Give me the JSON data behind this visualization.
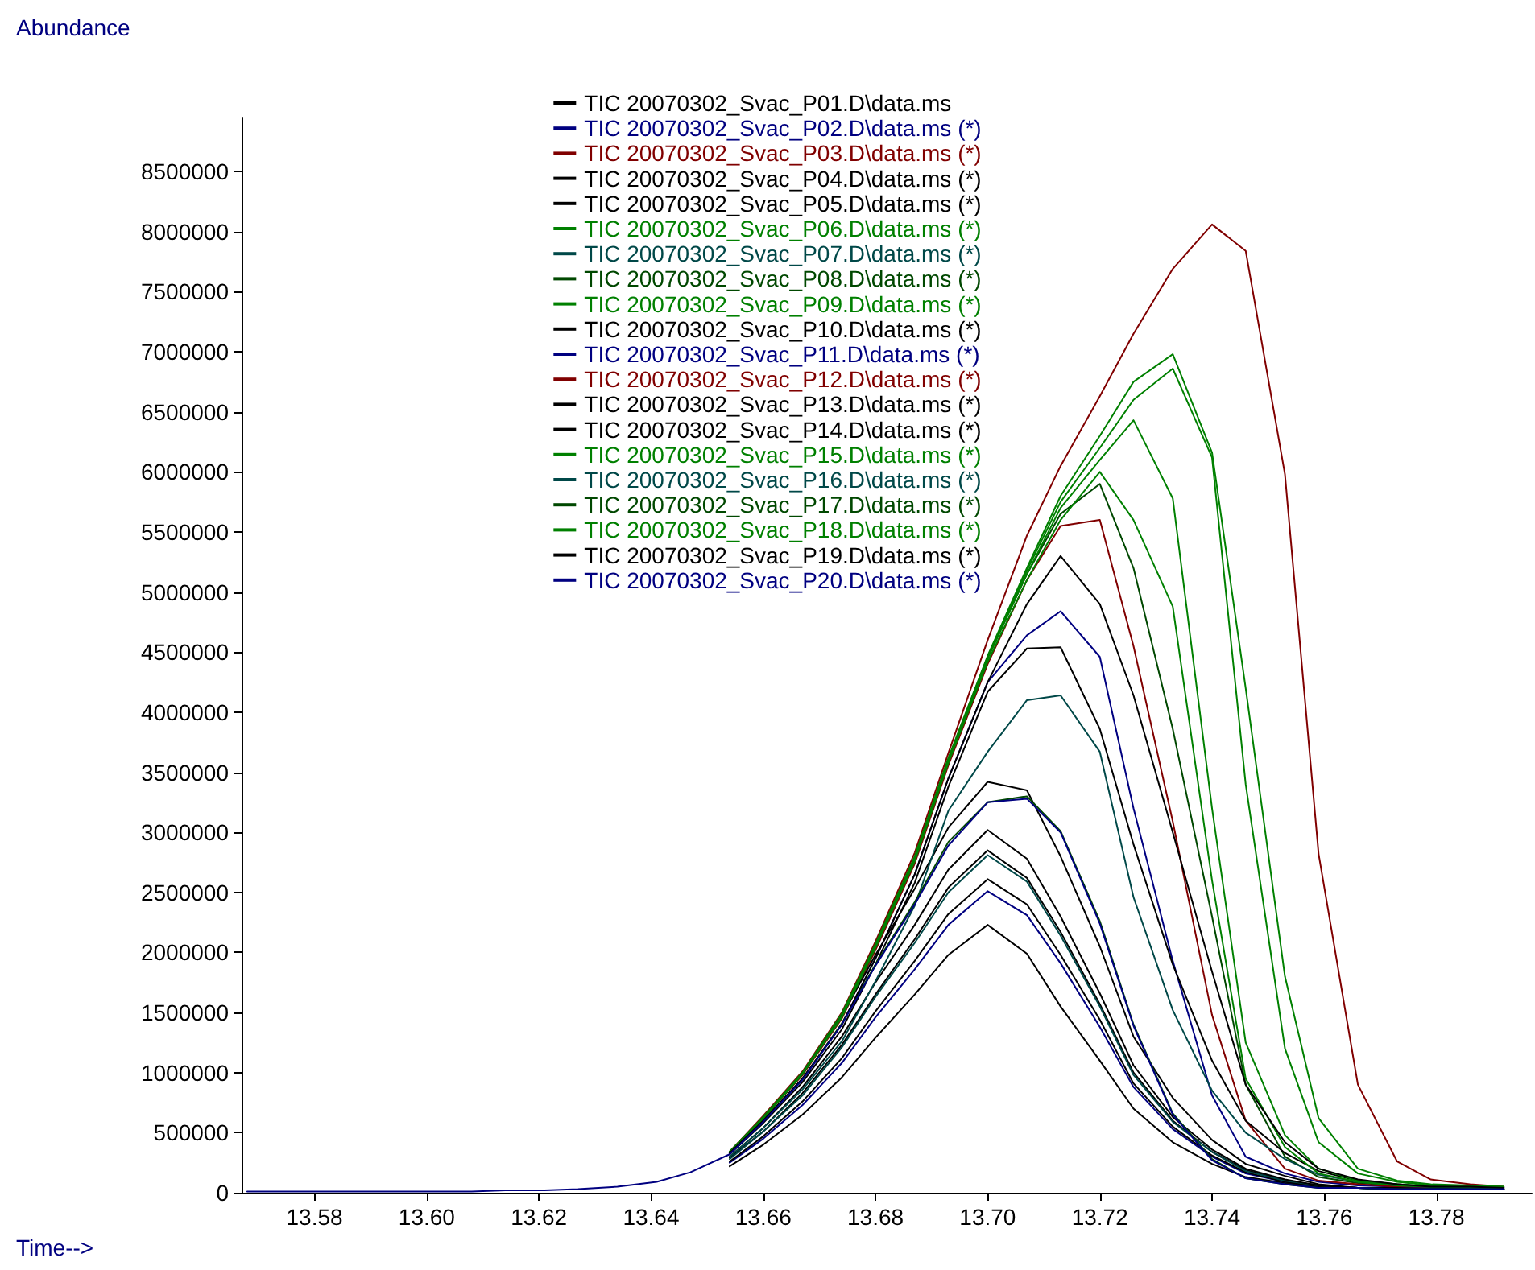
{
  "chart_data": {
    "type": "line",
    "xlabel": "Time-->",
    "ylabel": "Abundance",
    "legend": "top",
    "xlim": [
      13.567,
      13.797
    ],
    "ylim": [
      0,
      8950000
    ],
    "xticks": [
      {
        "value": 13.58,
        "label": "13.58"
      },
      {
        "value": 13.6,
        "label": "13.60"
      },
      {
        "value": 13.62,
        "label": "13.62"
      },
      {
        "value": 13.64,
        "label": "13.64"
      },
      {
        "value": 13.66,
        "label": "13.66"
      },
      {
        "value": 13.68,
        "label": "13.68"
      },
      {
        "value": 13.7,
        "label": "13.70"
      },
      {
        "value": 13.72,
        "label": "13.72"
      },
      {
        "value": 13.74,
        "label": "13.74"
      },
      {
        "value": 13.76,
        "label": "13.76"
      },
      {
        "value": 13.78,
        "label": "13.78"
      }
    ],
    "yticks": [
      0,
      500000,
      1000000,
      1500000,
      2000000,
      2500000,
      3000000,
      3500000,
      4000000,
      4500000,
      5000000,
      5500000,
      6000000,
      6500000,
      7000000,
      7500000,
      8000000,
      8500000
    ],
    "x": [
      13.568,
      13.575,
      13.581,
      13.588,
      13.594,
      13.601,
      13.608,
      13.614,
      13.621,
      13.627,
      13.634,
      13.641,
      13.647,
      13.654,
      13.66,
      13.667,
      13.674,
      13.68,
      13.687,
      13.693,
      13.7,
      13.707,
      13.713,
      13.72,
      13.726,
      13.733,
      13.74,
      13.746,
      13.753,
      13.759,
      13.766,
      13.773,
      13.779,
      13.786,
      13.792
    ],
    "series": [
      {
        "name": "TIC 20070302_Svac_P01.D\\data.ms",
        "color": "#000000",
        "values": [
          null,
          null,
          null,
          null,
          null,
          null,
          null,
          null,
          null,
          null,
          null,
          null,
          null,
          220000,
          400000,
          650000,
          960000,
          1290000,
          1650000,
          1980000,
          2230000,
          1990000,
          1550000,
          1100000,
          700000,
          420000,
          240000,
          130000,
          80000,
          50000,
          40000,
          30000,
          30000,
          30000,
          30000
        ]
      },
      {
        "name": "TIC 20070302_Svac_P02.D\\data.ms (*)",
        "color": "#000080",
        "values": [
          null,
          null,
          null,
          null,
          null,
          null,
          null,
          null,
          null,
          null,
          null,
          null,
          null,
          250000,
          450000,
          730000,
          1080000,
          1460000,
          1860000,
          2230000,
          2510000,
          2310000,
          1910000,
          1380000,
          880000,
          530000,
          300000,
          160000,
          90000,
          50000,
          40000,
          30000,
          30000,
          30000,
          30000
        ]
      },
      {
        "name": "TIC 20070302_Svac_P03.D\\data.ms (*)",
        "color": "#800000",
        "values": [
          null,
          null,
          null,
          null,
          null,
          null,
          null,
          null,
          null,
          null,
          null,
          null,
          null,
          340000,
          640000,
          1010000,
          1500000,
          2090000,
          2830000,
          3660000,
          4600000,
          5470000,
          6050000,
          6630000,
          7150000,
          7690000,
          8060000,
          7840000,
          5980000,
          2820000,
          900000,
          260000,
          110000,
          70000,
          50000
        ]
      },
      {
        "name": "TIC 20070302_Svac_P04.D\\data.ms (*)",
        "color": "#000000",
        "values": [
          null,
          null,
          null,
          null,
          null,
          null,
          null,
          null,
          null,
          null,
          null,
          null,
          null,
          260000,
          470000,
          760000,
          1120000,
          1510000,
          1930000,
          2320000,
          2610000,
          2400000,
          1980000,
          1440000,
          910000,
          550000,
          310000,
          170000,
          90000,
          50000,
          40000,
          30000,
          30000,
          30000,
          30000
        ]
      },
      {
        "name": "TIC 20070302_Svac_P05.D\\data.ms (*)",
        "color": "#000000",
        "values": [
          null,
          null,
          null,
          null,
          null,
          null,
          null,
          null,
          null,
          null,
          null,
          null,
          null,
          290000,
          510000,
          830000,
          1230000,
          1650000,
          2110000,
          2540000,
          2850000,
          2620000,
          2170000,
          1570000,
          1000000,
          600000,
          340000,
          190000,
          100000,
          60000,
          40000,
          30000,
          30000,
          30000,
          30000
        ]
      },
      {
        "name": "TIC 20070302_Svac_P06.D\\data.ms (*)",
        "color": "#008000",
        "values": [
          null,
          null,
          null,
          null,
          null,
          null,
          null,
          null,
          null,
          null,
          null,
          null,
          null,
          340000,
          630000,
          1000000,
          1490000,
          2070000,
          2800000,
          3620000,
          4470000,
          5200000,
          5800000,
          6300000,
          6750000,
          6980000,
          6160000,
          4200000,
          1800000,
          620000,
          200000,
          100000,
          70000,
          60000,
          50000
        ]
      },
      {
        "name": "TIC 20070302_Svac_P07.D\\data.ms (*)",
        "color": "#004848",
        "values": [
          null,
          null,
          null,
          null,
          null,
          null,
          null,
          null,
          null,
          null,
          null,
          null,
          null,
          280000,
          510000,
          810000,
          1210000,
          1630000,
          2080000,
          2500000,
          2810000,
          2590000,
          2140000,
          1550000,
          980000,
          590000,
          340000,
          180000,
          100000,
          60000,
          40000,
          30000,
          30000,
          30000,
          30000
        ]
      },
      {
        "name": "TIC 20070302_Svac_P08.D\\data.ms (*)",
        "color": "#004800",
        "values": [
          null,
          null,
          null,
          null,
          null,
          null,
          null,
          null,
          null,
          null,
          null,
          null,
          null,
          340000,
          620000,
          990000,
          1470000,
          2050000,
          2780000,
          3600000,
          4450000,
          5150000,
          5650000,
          5900000,
          5200000,
          3860000,
          2300000,
          900000,
          300000,
          130000,
          80000,
          60000,
          50000,
          50000,
          40000
        ]
      },
      {
        "name": "TIC 20070302_Svac_P09.D\\data.ms (*)",
        "color": "#008000",
        "values": [
          null,
          null,
          null,
          null,
          null,
          null,
          null,
          null,
          null,
          null,
          null,
          null,
          null,
          340000,
          630000,
          1000000,
          1480000,
          2060000,
          2790000,
          3610000,
          4460000,
          5180000,
          5750000,
          6200000,
          6600000,
          6860000,
          6120000,
          3400000,
          1200000,
          420000,
          160000,
          90000,
          60000,
          50000,
          50000
        ]
      },
      {
        "name": "TIC 20070302_Svac_P10.D\\data.ms (*)",
        "color": "#000000",
        "values": [
          null,
          null,
          null,
          null,
          null,
          null,
          null,
          null,
          null,
          null,
          null,
          null,
          null,
          300000,
          540000,
          880000,
          1300000,
          1750000,
          2230000,
          2690000,
          3020000,
          2780000,
          2300000,
          1660000,
          1060000,
          630000,
          360000,
          200000,
          110000,
          60000,
          40000,
          40000,
          30000,
          30000,
          30000
        ]
      },
      {
        "name": "TIC 20070302_Svac_P11.D\\data.ms (*)",
        "color": "#000080",
        "values": [
          null,
          null,
          null,
          null,
          null,
          null,
          null,
          null,
          null,
          null,
          null,
          null,
          null,
          330000,
          600000,
          950000,
          1400000,
          1950000,
          2650000,
          3450000,
          4250000,
          4640000,
          4840000,
          4460000,
          3200000,
          1930000,
          810000,
          300000,
          160000,
          90000,
          60000,
          50000,
          40000,
          40000,
          40000
        ]
      },
      {
        "name": "TIC 20070302_Svac_P12.D\\data.ms (*)",
        "color": "#800000",
        "values": [
          null,
          null,
          null,
          null,
          null,
          null,
          null,
          null,
          null,
          null,
          null,
          null,
          null,
          340000,
          620000,
          980000,
          1450000,
          2020000,
          2740000,
          3560000,
          4400000,
          5100000,
          5550000,
          5600000,
          4550000,
          3090000,
          1480000,
          600000,
          200000,
          100000,
          70000,
          50000,
          50000,
          40000,
          40000
        ]
      },
      {
        "name": "TIC 20070302_Svac_P13.D\\data.ms (*)",
        "color": "#000000",
        "values": [
          null,
          null,
          null,
          null,
          null,
          null,
          null,
          null,
          null,
          null,
          null,
          null,
          null,
          340000,
          620000,
          990000,
          1470000,
          1980000,
          2530000,
          3040000,
          3420000,
          3350000,
          2800000,
          2050000,
          1300000,
          790000,
          440000,
          240000,
          140000,
          70000,
          40000,
          40000,
          30000,
          30000,
          30000
        ]
      },
      {
        "name": "TIC 20070302_Svac_P14.D\\data.ms (*)",
        "color": "#000000",
        "values": [
          null,
          null,
          null,
          null,
          null,
          null,
          null,
          null,
          null,
          null,
          null,
          null,
          null,
          320000,
          580000,
          920000,
          1360000,
          1900000,
          2580000,
          3380000,
          4170000,
          4530000,
          4540000,
          3860000,
          2900000,
          1900000,
          1100000,
          600000,
          330000,
          180000,
          100000,
          70000,
          50000,
          40000,
          40000
        ]
      },
      {
        "name": "TIC 20070302_Svac_P15.D\\data.ms (*)",
        "color": "#008000",
        "values": [
          null,
          null,
          null,
          null,
          null,
          null,
          null,
          null,
          null,
          null,
          null,
          null,
          null,
          340000,
          620000,
          990000,
          1470000,
          2050000,
          2780000,
          3600000,
          4450000,
          5150000,
          5700000,
          6100000,
          6430000,
          5780000,
          3200000,
          1250000,
          480000,
          200000,
          100000,
          70000,
          50000,
          50000,
          40000
        ]
      },
      {
        "name": "TIC 20070302_Svac_P16.D\\data.ms (*)",
        "color": "#004848",
        "values": [
          null,
          null,
          null,
          null,
          null,
          null,
          null,
          null,
          null,
          null,
          null,
          null,
          null,
          300000,
          540000,
          860000,
          1260000,
          1760000,
          2390000,
          3180000,
          3670000,
          4100000,
          4140000,
          3670000,
          2460000,
          1520000,
          850000,
          500000,
          280000,
          150000,
          90000,
          60000,
          50000,
          40000,
          40000
        ]
      },
      {
        "name": "TIC 20070302_Svac_P17.D\\data.ms (*)",
        "color": "#004800",
        "values": [
          null,
          null,
          null,
          null,
          null,
          null,
          null,
          null,
          null,
          null,
          null,
          null,
          null,
          330000,
          600000,
          950000,
          1410000,
          1900000,
          2420000,
          2920000,
          3250000,
          3300000,
          3010000,
          2260000,
          1400000,
          660000,
          280000,
          120000,
          70000,
          40000,
          40000,
          30000,
          30000,
          30000,
          30000
        ]
      },
      {
        "name": "TIC 20070302_Svac_P18.D\\data.ms (*)",
        "color": "#008000",
        "values": [
          null,
          null,
          null,
          null,
          null,
          null,
          null,
          null,
          null,
          null,
          null,
          null,
          null,
          340000,
          620000,
          990000,
          1460000,
          2040000,
          2760000,
          3580000,
          4420000,
          5100000,
          5600000,
          6000000,
          5600000,
          4880000,
          2600000,
          950000,
          380000,
          160000,
          90000,
          60000,
          50000,
          50000,
          40000
        ]
      },
      {
        "name": "TIC 20070302_Svac_P19.D\\data.ms (*)",
        "color": "#000000",
        "values": [
          null,
          null,
          null,
          null,
          null,
          null,
          null,
          null,
          null,
          null,
          null,
          null,
          null,
          330000,
          600000,
          950000,
          1400000,
          1950000,
          2650000,
          3450000,
          4250000,
          4900000,
          5300000,
          4900000,
          4140000,
          3000000,
          1840000,
          900000,
          420000,
          200000,
          110000,
          70000,
          50000,
          50000,
          40000
        ]
      },
      {
        "name": "TIC 20070302_Svac_P20.D\\data.ms (*)",
        "color": "#000080",
        "values": [
          10000,
          10000,
          10000,
          10000,
          10000,
          10000,
          10000,
          20000,
          20000,
          30000,
          50000,
          90000,
          170000,
          320000,
          590000,
          940000,
          1400000,
          1890000,
          2400000,
          2890000,
          3250000,
          3280000,
          3000000,
          2240000,
          1390000,
          650000,
          270000,
          120000,
          70000,
          40000,
          40000,
          30000,
          30000,
          30000,
          30000
        ]
      }
    ]
  }
}
